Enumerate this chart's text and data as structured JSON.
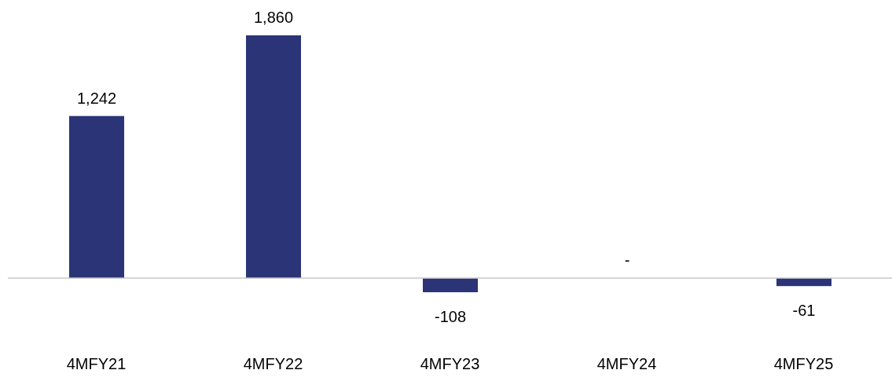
{
  "chart_data": {
    "type": "bar",
    "categories": [
      "4MFY21",
      "4MFY22",
      "4MFY23",
      "4MFY24",
      "4MFY25"
    ],
    "values": [
      1242,
      1860,
      -108,
      0,
      -61
    ],
    "value_labels": [
      "1,242",
      "1,860",
      "-108",
      "-",
      "-61"
    ],
    "color": "#2b3476",
    "grid": false,
    "legend": false
  }
}
